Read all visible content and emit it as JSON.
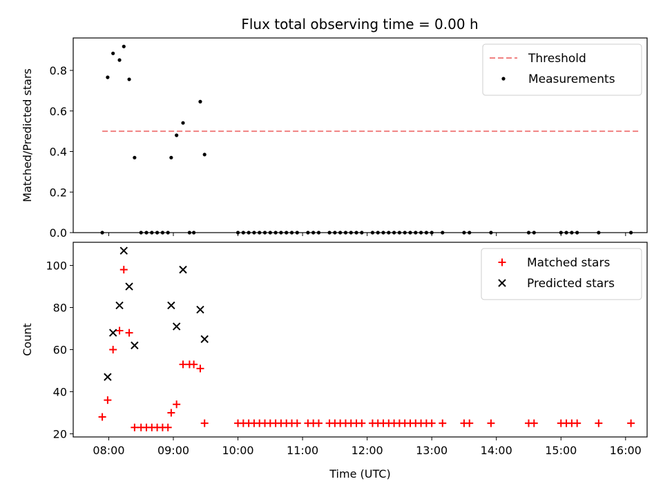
{
  "figure": {
    "title": "Flux total observing time = 0.00 h"
  },
  "chart_data": [
    {
      "type": "scatter",
      "title": "Flux total observing time = 0.00 h",
      "xlabel": "",
      "ylabel": "Matched/Predicted stars",
      "xlim": [
        "07:27",
        "16:20"
      ],
      "ylim": [
        0,
        0.96
      ],
      "yticks": [
        "0.0",
        "0.2",
        "0.4",
        "0.6",
        "0.8"
      ],
      "xticks": [
        "08:00",
        "09:00",
        "10:00",
        "11:00",
        "12:00",
        "13:00",
        "14:00",
        "15:00",
        "16:00"
      ],
      "grid": false,
      "legend": "top-right",
      "threshold": {
        "name": "Threshold",
        "value": 0.5,
        "x_range": [
          "07:54",
          "16:12"
        ],
        "color": "#f08080"
      },
      "series": [
        {
          "name": "Measurements",
          "color": "#000000",
          "points": [
            {
              "x": "07:54",
              "y": 0
            },
            {
              "x": "07:59",
              "y": 0.766
            },
            {
              "x": "08:04",
              "y": 0.884
            },
            {
              "x": "08:10",
              "y": 0.851
            },
            {
              "x": "08:14",
              "y": 0.918
            },
            {
              "x": "08:19",
              "y": 0.756
            },
            {
              "x": "08:24",
              "y": 0.37
            },
            {
              "x": "08:30",
              "y": 0
            },
            {
              "x": "08:35",
              "y": 0
            },
            {
              "x": "08:40",
              "y": 0
            },
            {
              "x": "08:45",
              "y": 0
            },
            {
              "x": "08:50",
              "y": 0
            },
            {
              "x": "08:55",
              "y": 0
            },
            {
              "x": "08:58",
              "y": 0.37
            },
            {
              "x": "09:03",
              "y": 0.48
            },
            {
              "x": "09:09",
              "y": 0.541
            },
            {
              "x": "09:15",
              "y": 0
            },
            {
              "x": "09:19",
              "y": 0
            },
            {
              "x": "09:25",
              "y": 0.646
            },
            {
              "x": "09:29",
              "y": 0.385
            },
            {
              "x": "10:00",
              "y": 0
            },
            {
              "x": "10:05",
              "y": 0
            },
            {
              "x": "10:10",
              "y": 0
            },
            {
              "x": "10:15",
              "y": 0
            },
            {
              "x": "10:20",
              "y": 0
            },
            {
              "x": "10:25",
              "y": 0
            },
            {
              "x": "10:30",
              "y": 0
            },
            {
              "x": "10:35",
              "y": 0
            },
            {
              "x": "10:40",
              "y": 0
            },
            {
              "x": "10:45",
              "y": 0
            },
            {
              "x": "10:50",
              "y": 0
            },
            {
              "x": "10:55",
              "y": 0
            },
            {
              "x": "11:05",
              "y": 0
            },
            {
              "x": "11:10",
              "y": 0
            },
            {
              "x": "11:15",
              "y": 0
            },
            {
              "x": "11:25",
              "y": 0
            },
            {
              "x": "11:30",
              "y": 0
            },
            {
              "x": "11:35",
              "y": 0
            },
            {
              "x": "11:40",
              "y": 0
            },
            {
              "x": "11:45",
              "y": 0
            },
            {
              "x": "11:50",
              "y": 0
            },
            {
              "x": "11:55",
              "y": 0
            },
            {
              "x": "12:05",
              "y": 0
            },
            {
              "x": "12:10",
              "y": 0
            },
            {
              "x": "12:15",
              "y": 0
            },
            {
              "x": "12:20",
              "y": 0
            },
            {
              "x": "12:25",
              "y": 0
            },
            {
              "x": "12:30",
              "y": 0
            },
            {
              "x": "12:35",
              "y": 0
            },
            {
              "x": "12:40",
              "y": 0
            },
            {
              "x": "12:45",
              "y": 0
            },
            {
              "x": "12:50",
              "y": 0
            },
            {
              "x": "12:55",
              "y": 0
            },
            {
              "x": "13:00",
              "y": 0
            },
            {
              "x": "13:10",
              "y": 0
            },
            {
              "x": "13:30",
              "y": 0
            },
            {
              "x": "13:35",
              "y": 0
            },
            {
              "x": "13:55",
              "y": 0
            },
            {
              "x": "14:30",
              "y": 0
            },
            {
              "x": "14:35",
              "y": 0
            },
            {
              "x": "15:00",
              "y": 0
            },
            {
              "x": "15:05",
              "y": 0
            },
            {
              "x": "15:10",
              "y": 0
            },
            {
              "x": "15:15",
              "y": 0
            },
            {
              "x": "15:35",
              "y": 0
            },
            {
              "x": "16:05",
              "y": 0
            }
          ]
        }
      ]
    },
    {
      "type": "scatter",
      "title": "",
      "xlabel": "Time (UTC)",
      "ylabel": "Count",
      "xlim": [
        "07:27",
        "16:20"
      ],
      "ylim": [
        18.5,
        111
      ],
      "yticks": [
        "20",
        "40",
        "60",
        "80",
        "100"
      ],
      "xticks": [
        "08:00",
        "09:00",
        "10:00",
        "11:00",
        "12:00",
        "13:00",
        "14:00",
        "15:00",
        "16:00"
      ],
      "grid": false,
      "legend": "top-right",
      "series": [
        {
          "name": "Matched stars",
          "marker": "plus",
          "color": "#ff0000",
          "points": [
            {
              "x": "07:54",
              "y": 28
            },
            {
              "x": "07:59",
              "y": 36
            },
            {
              "x": "08:04",
              "y": 60
            },
            {
              "x": "08:10",
              "y": 69
            },
            {
              "x": "08:14",
              "y": 98
            },
            {
              "x": "08:19",
              "y": 68
            },
            {
              "x": "08:24",
              "y": 23
            },
            {
              "x": "08:30",
              "y": 23
            },
            {
              "x": "08:35",
              "y": 23
            },
            {
              "x": "08:40",
              "y": 23
            },
            {
              "x": "08:45",
              "y": 23
            },
            {
              "x": "08:50",
              "y": 23
            },
            {
              "x": "08:55",
              "y": 23
            },
            {
              "x": "08:58",
              "y": 30
            },
            {
              "x": "09:03",
              "y": 34
            },
            {
              "x": "09:09",
              "y": 53
            },
            {
              "x": "09:15",
              "y": 53
            },
            {
              "x": "09:19",
              "y": 53
            },
            {
              "x": "09:25",
              "y": 51
            },
            {
              "x": "09:29",
              "y": 25
            },
            {
              "x": "10:00",
              "y": 25
            },
            {
              "x": "10:05",
              "y": 25
            },
            {
              "x": "10:10",
              "y": 25
            },
            {
              "x": "10:15",
              "y": 25
            },
            {
              "x": "10:20",
              "y": 25
            },
            {
              "x": "10:25",
              "y": 25
            },
            {
              "x": "10:30",
              "y": 25
            },
            {
              "x": "10:35",
              "y": 25
            },
            {
              "x": "10:40",
              "y": 25
            },
            {
              "x": "10:45",
              "y": 25
            },
            {
              "x": "10:50",
              "y": 25
            },
            {
              "x": "10:55",
              "y": 25
            },
            {
              "x": "11:05",
              "y": 25
            },
            {
              "x": "11:10",
              "y": 25
            },
            {
              "x": "11:15",
              "y": 25
            },
            {
              "x": "11:25",
              "y": 25
            },
            {
              "x": "11:30",
              "y": 25
            },
            {
              "x": "11:35",
              "y": 25
            },
            {
              "x": "11:40",
              "y": 25
            },
            {
              "x": "11:45",
              "y": 25
            },
            {
              "x": "11:50",
              "y": 25
            },
            {
              "x": "11:55",
              "y": 25
            },
            {
              "x": "12:05",
              "y": 25
            },
            {
              "x": "12:10",
              "y": 25
            },
            {
              "x": "12:15",
              "y": 25
            },
            {
              "x": "12:20",
              "y": 25
            },
            {
              "x": "12:25",
              "y": 25
            },
            {
              "x": "12:30",
              "y": 25
            },
            {
              "x": "12:35",
              "y": 25
            },
            {
              "x": "12:40",
              "y": 25
            },
            {
              "x": "12:45",
              "y": 25
            },
            {
              "x": "12:50",
              "y": 25
            },
            {
              "x": "12:55",
              "y": 25
            },
            {
              "x": "13:00",
              "y": 25
            },
            {
              "x": "13:10",
              "y": 25
            },
            {
              "x": "13:30",
              "y": 25
            },
            {
              "x": "13:35",
              "y": 25
            },
            {
              "x": "13:55",
              "y": 25
            },
            {
              "x": "14:30",
              "y": 25
            },
            {
              "x": "14:35",
              "y": 25
            },
            {
              "x": "15:00",
              "y": 25
            },
            {
              "x": "15:05",
              "y": 25
            },
            {
              "x": "15:10",
              "y": 25
            },
            {
              "x": "15:15",
              "y": 25
            },
            {
              "x": "15:35",
              "y": 25
            },
            {
              "x": "16:05",
              "y": 25
            }
          ]
        },
        {
          "name": "Predicted stars",
          "marker": "x",
          "color": "#000000",
          "points": [
            {
              "x": "07:59",
              "y": 47
            },
            {
              "x": "08:04",
              "y": 68
            },
            {
              "x": "08:10",
              "y": 81
            },
            {
              "x": "08:14",
              "y": 107
            },
            {
              "x": "08:19",
              "y": 90
            },
            {
              "x": "08:24",
              "y": 62
            },
            {
              "x": "08:58",
              "y": 81
            },
            {
              "x": "09:03",
              "y": 71
            },
            {
              "x": "09:09",
              "y": 98
            },
            {
              "x": "09:25",
              "y": 79
            },
            {
              "x": "09:29",
              "y": 65
            }
          ]
        }
      ]
    }
  ]
}
